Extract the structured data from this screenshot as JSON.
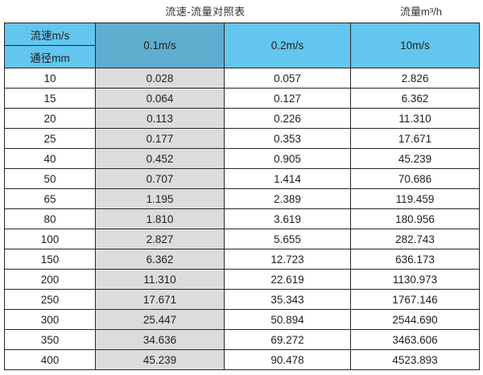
{
  "page": {
    "title_left": "流速-流量对照表",
    "title_right": "流量m³/h"
  },
  "colors": {
    "header_blue": "#63c6ee",
    "header_blue_dark": "#5fadcf",
    "highlight_column_gray": "#dcdcdc",
    "border": "#262626",
    "text": "#1f1f1f",
    "background": "#ffffff"
  },
  "chart_data": {
    "type": "table",
    "title": "流速-流量对照表",
    "unit_label": "流量m³/h",
    "corner_labels": [
      "流速m/s",
      "通径mm"
    ],
    "columns": [
      "0.1m/s",
      "0.2m/s",
      "10m/s"
    ],
    "row_header_label": "通径mm",
    "rows": [
      [
        "10",
        "0.028",
        "0.057",
        "2.826"
      ],
      [
        "15",
        "0.064",
        "0.127",
        "6.362"
      ],
      [
        "20",
        "0.113",
        "0.226",
        "11.310"
      ],
      [
        "25",
        "0.177",
        "0.353",
        "17.671"
      ],
      [
        "40",
        "0.452",
        "0.905",
        "45.239"
      ],
      [
        "50",
        "0.707",
        "1.414",
        "70.686"
      ],
      [
        "65",
        "1.195",
        "2.389",
        "119.459"
      ],
      [
        "80",
        "1.810",
        "3.619",
        "180.956"
      ],
      [
        "100",
        "2.827",
        "5.655",
        "282.743"
      ],
      [
        "150",
        "6.362",
        "12.723",
        "636.173"
      ],
      [
        "200",
        "11.310",
        "22.619",
        "1130.973"
      ],
      [
        "250",
        "17.671",
        "35.343",
        "1767.146"
      ],
      [
        "300",
        "25.447",
        "50.894",
        "2544.690"
      ],
      [
        "350",
        "34.636",
        "69.272",
        "3463.606"
      ],
      [
        "400",
        "45.239",
        "90.478",
        "4523.893"
      ]
    ]
  }
}
